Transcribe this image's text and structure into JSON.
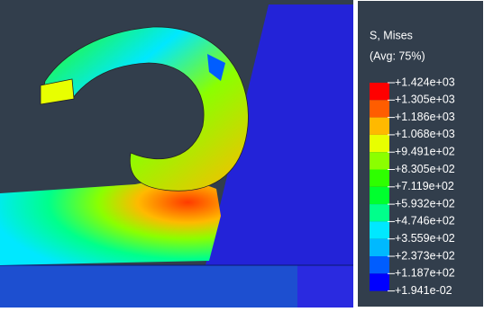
{
  "legend": {
    "title": "S, Mises",
    "subtitle": "(Avg: 75%)",
    "labels": [
      "+1.424e+03",
      "+1.305e+03",
      "+1.186e+03",
      "+1.068e+03",
      "+9.491e+02",
      "+8.305e+02",
      "+7.119e+02",
      "+5.932e+02",
      "+4.746e+02",
      "+3.559e+02",
      "+2.373e+02",
      "+1.187e+02",
      "+1.941e-02"
    ],
    "colors": [
      "#ff0000",
      "#ff5d00",
      "#ffb900",
      "#e8ff00",
      "#8bff00",
      "#2eff00",
      "#00ff2e",
      "#00ff8b",
      "#00e8ff",
      "#00b9ff",
      "#005dff",
      "#0000ff"
    ]
  }
}
